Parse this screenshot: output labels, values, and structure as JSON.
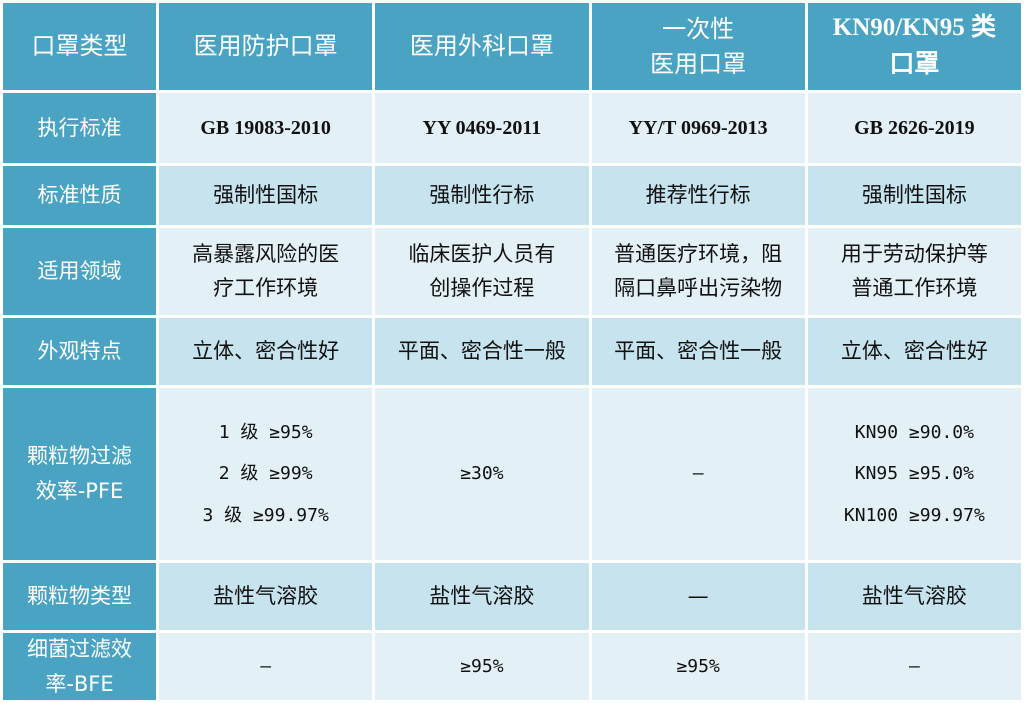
{
  "header": {
    "type_label": "口罩类型",
    "col1": "医用防护口罩",
    "col2": "医用外科口罩",
    "col3": "一次性\n医用口罩",
    "col4": "KN90/KN95 类\n口罩"
  },
  "rows": [
    {
      "label": "执行标准",
      "cells": [
        "GB 19083-2010",
        "YY 0469-2011",
        "YY/T 0969-2013",
        "GB 2626-2019"
      ]
    },
    {
      "label": "标准性质",
      "cells": [
        "强制性国标",
        "强制性行标",
        "推荐性行标",
        "强制性国标"
      ]
    },
    {
      "label": "适用领域",
      "cells": [
        "高暴露风险的医\n疗工作环境",
        "临床医护人员有\n创操作过程",
        "普通医疗环境，阻\n隔口鼻呼出污染物",
        "用于劳动保护等\n普通工作环境"
      ]
    },
    {
      "label": "外观特点",
      "cells": [
        "立体、密合性好",
        "平面、密合性一般",
        "平面、密合性一般",
        "立体、密合性好"
      ]
    },
    {
      "label": "颗粒物过滤\n效率-PFE",
      "cells": [
        "1 级  ≥95%\n2 级  ≥99%\n3 级  ≥99.97%",
        "≥30%",
        "—",
        "KN90  ≥90.0%\nKN95  ≥95.0%\nKN100 ≥99.97%"
      ]
    },
    {
      "label": "颗粒物类型",
      "cells": [
        "盐性气溶胶",
        "盐性气溶胶",
        "—",
        "盐性气溶胶"
      ]
    },
    {
      "label": "细菌过滤效\n率-BFE",
      "cells": [
        "—",
        "≥95%",
        "≥95%",
        "—"
      ]
    }
  ],
  "colors": {
    "header_bg": "#4aa3c3",
    "band_light": "#e3f1f6",
    "band_dark": "#c6e3ee"
  }
}
